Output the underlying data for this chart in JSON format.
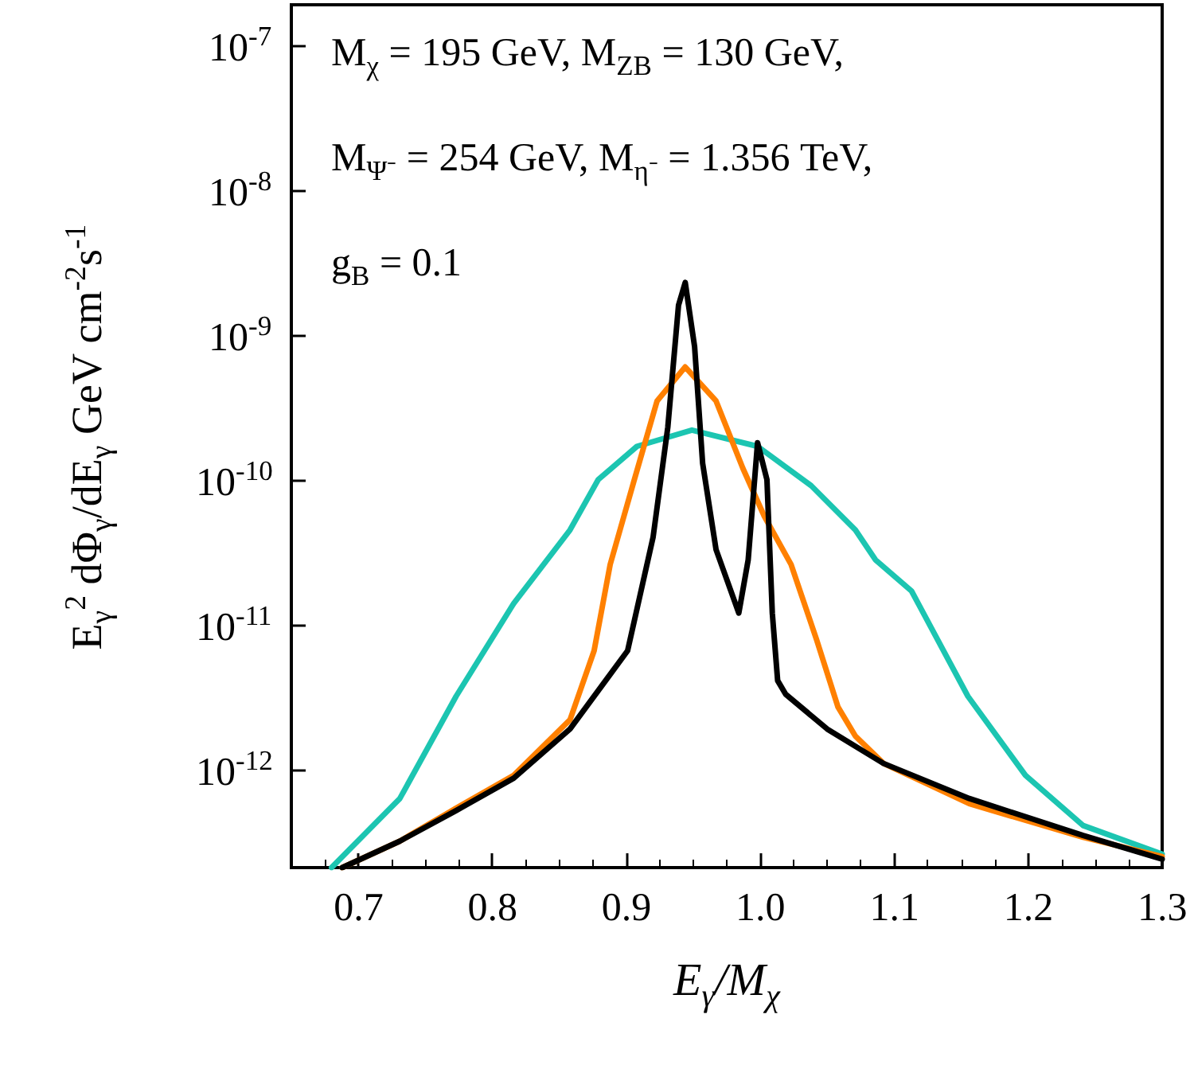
{
  "chart_data": {
    "type": "line",
    "xlabel": "E$_{γ}$/M$_{χ}$",
    "ylabel": "E$_{γ}$$^{2}$ dΦ$_{γ}$/dE$_{γ}$ GeV cm$^{-2}$s$^{-1}$",
    "annotations": [
      "M$_{χ}$ = 195 GeV, M$_{Z}$$_{B}$ = 130 GeV,",
      "M$_{Ψ⁻}$ = 254 GeV, M$_{η⁻}$ = 1.356 TeV,",
      "g$_{B}$ = 0.1"
    ],
    "log": "y",
    "marker": "none",
    "line_style": "solid",
    "xlim": [
      0.65,
      1.3
    ],
    "xticks": [
      {
        "value": 0.7,
        "label": "0.7"
      },
      {
        "value": 0.8,
        "label": "0.8"
      },
      {
        "value": 0.9,
        "label": "0.9"
      },
      {
        "value": 1,
        "label": "1.0"
      },
      {
        "value": 1.1,
        "label": "1.1"
      },
      {
        "value": 1.2,
        "label": "1.2"
      },
      {
        "value": 1.3,
        "label": "1.3"
      }
    ],
    "ylim": [
      2.1e-13,
      1.9e-07
    ],
    "yticks": [
      {
        "value": 1e-12,
        "label": "10$^{-12}$"
      },
      {
        "value": 1e-11,
        "label": "10$^{-11}$"
      },
      {
        "value": 1e-10,
        "label": "10$^{-10}$"
      },
      {
        "value": 1e-09,
        "label": "10$^{-9}$"
      },
      {
        "value": 1e-08,
        "label": "10$^{-8}$"
      },
      {
        "value": 1e-07,
        "label": "10$^{-7}$"
      }
    ],
    "series": [
      {
        "color": "#1cc5b1",
        "x": [
          0.68,
          0.731,
          0.773,
          0.816,
          0.858,
          0.879,
          0.908,
          0.949,
          0.998,
          1.038,
          1.071,
          1.086,
          1.113,
          1.155,
          1.198,
          1.241,
          1.3
        ],
        "values": [
          2.1e-13,
          6.3e-13,
          3.2e-12,
          1.4e-11,
          4.5e-11,
          1e-10,
          1.7e-10,
          2.2e-10,
          1.7e-10,
          9.1e-11,
          4.5e-11,
          2.8e-11,
          1.7e-11,
          3.2e-12,
          9.1e-13,
          4.1e-13,
          2.6e-13
        ]
      },
      {
        "color": "#ff8000",
        "x": [
          0.688,
          0.731,
          0.773,
          0.816,
          0.858,
          0.876,
          0.888,
          0.906,
          0.923,
          0.944,
          0.967,
          0.987,
          1.003,
          1.023,
          1.042,
          1.058,
          1.071,
          1.092,
          1.156,
          1.241,
          1.3
        ],
        "values": [
          2.1e-13,
          3.2e-13,
          5.4e-13,
          9.1e-13,
          2.2e-12,
          6.6e-12,
          2.6e-11,
          1e-10,
          3.5e-10,
          6e-10,
          3.5e-10,
          1.2e-10,
          5.6e-11,
          2.6e-11,
          7.9e-12,
          2.7e-12,
          1.7e-12,
          1.1e-12,
          5.8e-13,
          3.4e-13,
          2.5e-13
        ]
      },
      {
        "color": "#000000",
        "x": [
          0.688,
          0.731,
          0.773,
          0.816,
          0.858,
          0.901,
          0.92,
          0.931,
          0.939,
          0.944,
          0.951,
          0.957,
          0.967,
          0.984,
          0.991,
          0.998,
          1.005,
          1.009,
          1.013,
          1.019,
          1.05,
          1.092,
          1.156,
          1.241,
          1.3
        ],
        "values": [
          2.1e-13,
          3.2e-13,
          5.2e-13,
          8.7e-13,
          1.9e-12,
          6.6e-12,
          4e-11,
          2.3e-10,
          1.6e-09,
          2.3e-09,
          8.3e-10,
          1.3e-10,
          3.3e-11,
          1.2e-11,
          2.8e-11,
          1.8e-10,
          1e-10,
          1.2e-11,
          4.1e-12,
          3.3e-12,
          1.9e-12,
          1.1e-12,
          6.3e-13,
          3.5e-13,
          2.4e-13
        ]
      }
    ]
  }
}
